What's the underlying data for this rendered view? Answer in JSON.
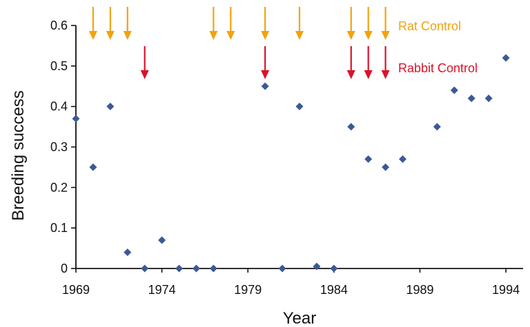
{
  "chart_data": {
    "type": "scatter",
    "title": "",
    "xlabel": "Year",
    "ylabel": "Breeding success",
    "xlim": [
      1969,
      1995
    ],
    "ylim": [
      0,
      0.6
    ],
    "x_ticks": [
      1969,
      1974,
      1979,
      1984,
      1989,
      1994
    ],
    "y_ticks": [
      0,
      0.1,
      0.2,
      0.3,
      0.4,
      0.5,
      0.6
    ],
    "x_tick_labels": [
      "1969",
      "1974",
      "1979",
      "1984",
      "1989",
      "1994"
    ],
    "y_tick_labels": [
      "0",
      "0.1",
      "0.2",
      "0.3",
      "0.4",
      "0.5",
      "0.6"
    ],
    "grid": false,
    "legend_position": "top-right",
    "series": [
      {
        "name": "",
        "marker": "diamond",
        "color": "#3b5998",
        "points": [
          {
            "x": 1969,
            "y": 0.37
          },
          {
            "x": 1970,
            "y": 0.25
          },
          {
            "x": 1971,
            "y": 0.4
          },
          {
            "x": 1972,
            "y": 0.04
          },
          {
            "x": 1973,
            "y": 0.0
          },
          {
            "x": 1974,
            "y": 0.07
          },
          {
            "x": 1975,
            "y": 0.0
          },
          {
            "x": 1976,
            "y": 0.0
          },
          {
            "x": 1977,
            "y": 0.0
          },
          {
            "x": 1980,
            "y": 0.45
          },
          {
            "x": 1981,
            "y": 0.0
          },
          {
            "x": 1982,
            "y": 0.4
          },
          {
            "x": 1983,
            "y": 0.005
          },
          {
            "x": 1984,
            "y": 0.0
          },
          {
            "x": 1985,
            "y": 0.35
          },
          {
            "x": 1986,
            "y": 0.27
          },
          {
            "x": 1987,
            "y": 0.25
          },
          {
            "x": 1988,
            "y": 0.27
          },
          {
            "x": 1990,
            "y": 0.35
          },
          {
            "x": 1991,
            "y": 0.44
          },
          {
            "x": 1992,
            "y": 0.42
          },
          {
            "x": 1993,
            "y": 0.42
          },
          {
            "x": 1994,
            "y": 0.52
          }
        ]
      }
    ],
    "annotations": [
      {
        "label": "Rat Control",
        "color": "#f2a20c",
        "years": [
          1970,
          1971,
          1972,
          1977,
          1978,
          1980,
          1982,
          1985,
          1986,
          1987
        ]
      },
      {
        "label": "Rabbit Control",
        "color": "#d9132a",
        "years": [
          1973,
          1980,
          1985,
          1986,
          1987
        ]
      }
    ]
  }
}
